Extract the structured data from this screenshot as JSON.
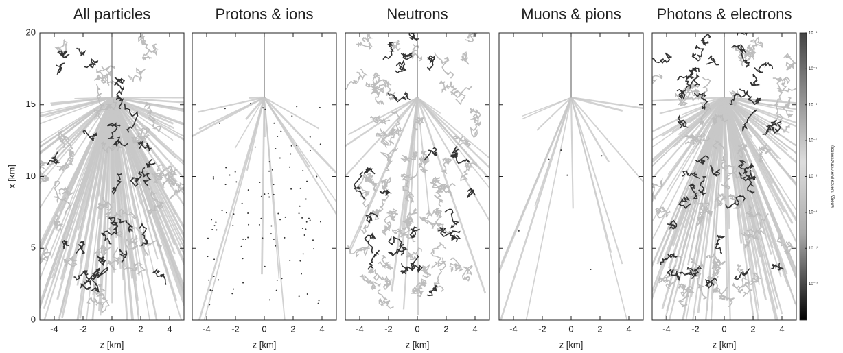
{
  "chart_data": [
    {
      "type": "tracks",
      "title": "All particles",
      "xlabel": "z [km]",
      "ylabel": "x [km]",
      "xlim": [
        -5,
        5
      ],
      "xticks": [
        -4,
        -2,
        0,
        2,
        4
      ],
      "ylim": [
        0,
        20
      ],
      "yticks": [
        0,
        5,
        10,
        15,
        20
      ]
    },
    {
      "type": "tracks",
      "title": "Protons & ions",
      "xlabel": "z [km]",
      "xlim": [
        -5,
        5
      ],
      "xticks": [
        -4,
        -2,
        0,
        2,
        4
      ],
      "ylim": [
        0,
        20
      ],
      "yticks": [
        0,
        5,
        10,
        15,
        20
      ]
    },
    {
      "type": "tracks",
      "title": "Neutrons",
      "xlabel": "z [km]",
      "xlim": [
        -5,
        5
      ],
      "xticks": [
        -4,
        -2,
        0,
        2,
        4
      ],
      "ylim": [
        0,
        20
      ],
      "yticks": [
        0,
        5,
        10,
        15,
        20
      ]
    },
    {
      "type": "tracks",
      "title": "Muons & pions",
      "xlabel": "z [km]",
      "xlim": [
        -5,
        5
      ],
      "xticks": [
        -4,
        -2,
        0,
        2,
        4
      ],
      "ylim": [
        0,
        20
      ],
      "yticks": [
        0,
        5,
        10,
        15,
        20
      ]
    },
    {
      "type": "tracks",
      "title": "Photons & electrons",
      "xlabel": "z [km]",
      "xlim": [
        -5,
        5
      ],
      "xticks": [
        -4,
        -2,
        0,
        2,
        4
      ],
      "ylim": [
        0,
        20
      ],
      "yticks": [
        0,
        5,
        10,
        15,
        20
      ],
      "colorbar": {
        "label": "Energy fluence (MeV/cm2/source)",
        "lim": [
          -12,
          -4
        ],
        "ticks": [
          {
            "value": -4,
            "label": "10⁻⁴"
          },
          {
            "value": -5,
            "label": "10⁻⁵"
          },
          {
            "value": -6,
            "label": "10⁻⁶"
          },
          {
            "value": -7,
            "label": "10⁻⁷"
          },
          {
            "value": -8,
            "label": "10⁻⁸"
          },
          {
            "value": -9,
            "label": "10⁻⁹"
          },
          {
            "value": -10,
            "label": "10⁻¹⁰"
          },
          {
            "value": -11,
            "label": "10⁻¹¹"
          }
        ]
      }
    }
  ]
}
